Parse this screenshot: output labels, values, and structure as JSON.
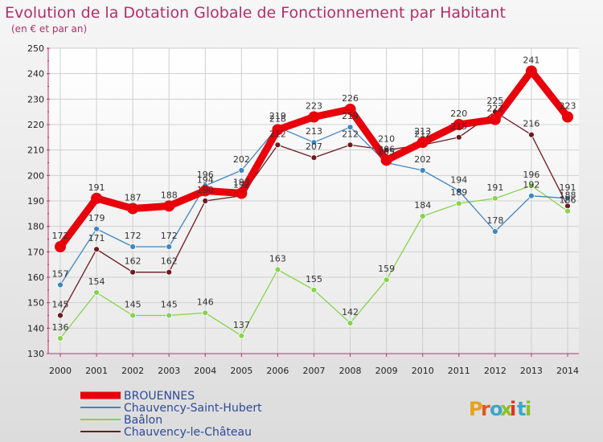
{
  "chart_data": {
    "type": "line",
    "title": "Evolution de la Dotation Globale de Fonctionnement par Habitant",
    "subtitle": "(en € et par an)",
    "x": [
      "2000",
      "2001",
      "2002",
      "2003",
      "2004",
      "2005",
      "2006",
      "2007",
      "2008",
      "2009",
      "2010",
      "2011",
      "2012",
      "2013",
      "2014"
    ],
    "yticks": [
      130,
      140,
      150,
      160,
      170,
      180,
      190,
      200,
      210,
      220,
      230,
      240,
      250
    ],
    "ylim": [
      130,
      250
    ],
    "series": [
      {
        "name": "BROUENNES",
        "color": "#e8000b",
        "values": [
          172,
          191,
          187,
          188,
          194,
          193,
          218,
          223,
          226,
          206,
          213,
          220,
          222,
          241,
          223
        ]
      },
      {
        "name": "Chauvency-Saint-Hubert",
        "color": "#3f86c4",
        "values": [
          157,
          179,
          172,
          172,
          196,
          202,
          219,
          213,
          219,
          205,
          202,
          194,
          178,
          192,
          191
        ]
      },
      {
        "name": "Baâlon",
        "color": "#86d44a",
        "values": [
          136,
          154,
          145,
          145,
          146,
          137,
          163,
          155,
          142,
          159,
          184,
          189,
          191,
          196,
          186
        ]
      },
      {
        "name": "Chauvency-le-Château",
        "color": "#6e1a1f",
        "values": [
          145,
          171,
          162,
          162,
          190,
          192,
          212,
          207,
          212,
          210,
          212,
          215,
          225,
          216,
          188
        ]
      }
    ],
    "logo": "Proxiti"
  }
}
